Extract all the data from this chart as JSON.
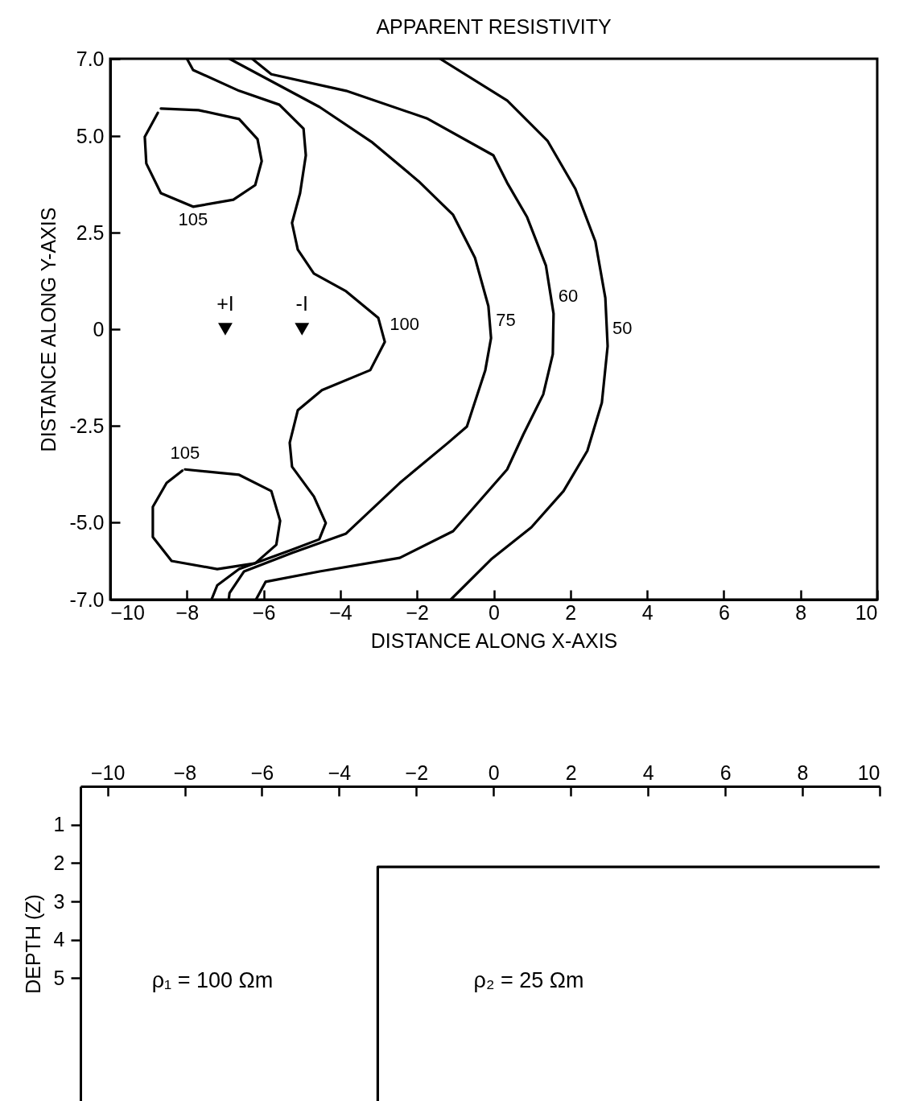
{
  "chart_data": [
    {
      "type": "line",
      "title": "APPARENT RESISTIVITY",
      "xlabel": "DISTANCE ALONG X-AXIS",
      "ylabel": "DISTANCE ALONG Y-AXIS",
      "xlim": [
        -10,
        10
      ],
      "xticks": [
        -10,
        -8,
        -6,
        -4,
        -2,
        0,
        2,
        4,
        6,
        8,
        10
      ],
      "ylim": [
        -7,
        7
      ],
      "yticks": [
        {
          "value": 7,
          "label": "7.0"
        },
        {
          "value": 5,
          "label": "5.0"
        },
        {
          "value": 2.5,
          "label": "2.5"
        },
        0,
        {
          "value": -2.5,
          "label": "-2.5"
        },
        {
          "value": -5,
          "label": "-5.0"
        },
        {
          "value": -7,
          "label": "-7.0"
        }
      ],
      "grid": false,
      "legend": false,
      "series": [
        {
          "name": "100",
          "color": "#000000",
          "x": [
            -8.0,
            -7.84,
            -6.64,
            -5.59,
            -4.96,
            -4.9,
            -5.05,
            -5.26,
            -5.11,
            -4.69,
            -3.85,
            -3.01,
            -2.84,
            -3.22,
            -4.48,
            -5.11,
            -5.32,
            -5.26,
            -4.69,
            -4.38,
            -4.55,
            -5.26,
            -6.64,
            -7.21,
            -7.36
          ],
          "values": [
            7.0,
            6.71,
            6.17,
            5.81,
            5.19,
            4.5,
            3.52,
            2.75,
            2.06,
            1.44,
            0.98,
            0.29,
            -0.33,
            -1.06,
            -1.58,
            -2.1,
            -2.94,
            -3.56,
            -4.33,
            -5.02,
            -5.44,
            -5.71,
            -6.21,
            -6.63,
            -7.0
          ]
        },
        {
          "name": "75",
          "color": "#000000",
          "x": [
            -6.89,
            -4.54,
            -3.16,
            -1.96,
            -1.06,
            -0.49,
            -0.14,
            -0.07,
            -0.22,
            -0.7,
            -1.19,
            -2.45,
            -3.85,
            -5.26,
            -6.51,
            -6.89,
            -6.91
          ],
          "values": [
            7.0,
            5.75,
            4.83,
            3.83,
            2.96,
            1.85,
            0.6,
            -0.23,
            -1.06,
            -2.52,
            -2.94,
            -3.98,
            -5.29,
            -5.79,
            -6.27,
            -6.83,
            -7.0
          ]
        },
        {
          "name": "60",
          "color": "#000000",
          "x": [
            -6.3,
            -5.8,
            -3.85,
            -1.75,
            -0.01,
            0.35,
            0.87,
            1.36,
            1.56,
            1.54,
            1.29,
            0.77,
            0.35,
            -1.06,
            -2.45,
            -4.54,
            -5.95,
            -6.2
          ],
          "values": [
            7.0,
            6.6,
            6.17,
            5.46,
            4.5,
            3.79,
            2.9,
            1.65,
            0.4,
            -0.65,
            -1.69,
            -2.73,
            -3.63,
            -5.23,
            -5.92,
            -6.27,
            -6.54,
            -7.0
          ]
        },
        {
          "name": "50",
          "color": "#000000",
          "x": [
            -1.4,
            0.35,
            1.4,
            2.13,
            2.65,
            2.91,
            2.97,
            2.82,
            2.44,
            1.82,
            0.98,
            -0.07,
            -1.12
          ],
          "values": [
            7.0,
            5.92,
            4.88,
            3.63,
            2.27,
            0.81,
            -0.44,
            -1.9,
            -3.15,
            -4.19,
            -5.13,
            -5.96,
            -7.0
          ]
        },
        {
          "name": "105",
          "color": "#000000",
          "x": [
            -8.68,
            -7.7,
            -6.64,
            -6.16,
            -6.05,
            -6.22,
            -6.79,
            -7.84,
            -8.68,
            -9.06,
            -9.1,
            -8.76,
            null,
            -8.05,
            -6.64,
            -5.8,
            -5.57,
            -5.67,
            -6.22,
            -7.21,
            -8.4,
            -8.89,
            -8.89,
            -8.53,
            -8.12
          ],
          "values": [
            5.71,
            5.67,
            5.44,
            4.92,
            4.35,
            3.73,
            3.35,
            3.17,
            3.52,
            4.29,
            4.98,
            5.6,
            null,
            -3.63,
            -3.77,
            -4.19,
            -4.96,
            -5.58,
            -6.06,
            -6.21,
            -6.0,
            -5.38,
            -4.6,
            -3.98,
            -3.66
          ]
        },
        {
          "type": "scatter",
          "name": "+I",
          "color": "#000000",
          "marker": "triangle",
          "x": [
            -7
          ],
          "values": [
            0
          ]
        },
        {
          "type": "scatter",
          "name": "-I",
          "color": "#000000",
          "marker": "triangle",
          "x": [
            -5
          ],
          "values": [
            0
          ]
        }
      ]
    },
    {
      "type": "line",
      "ylabel": "DEPTH (Z)",
      "xlim": [
        -10.7,
        10
      ],
      "xticks": [
        -10,
        -8,
        -6,
        -4,
        -2,
        0,
        2,
        4,
        6,
        8,
        10
      ],
      "ylim": [
        8.2,
        0
      ],
      "yticks": [
        1,
        2,
        3,
        4,
        5
      ],
      "grid": false,
      "legend": false,
      "series": [
        {
          "color": "#000000",
          "x": [
            -3,
            -3,
            10
          ],
          "values": [
            8.2,
            2.1,
            2.1
          ]
        }
      ],
      "annotations": [
        "ρ₁ = 100 Ωm",
        "ρ₂ = 25 Ωm"
      ]
    }
  ]
}
